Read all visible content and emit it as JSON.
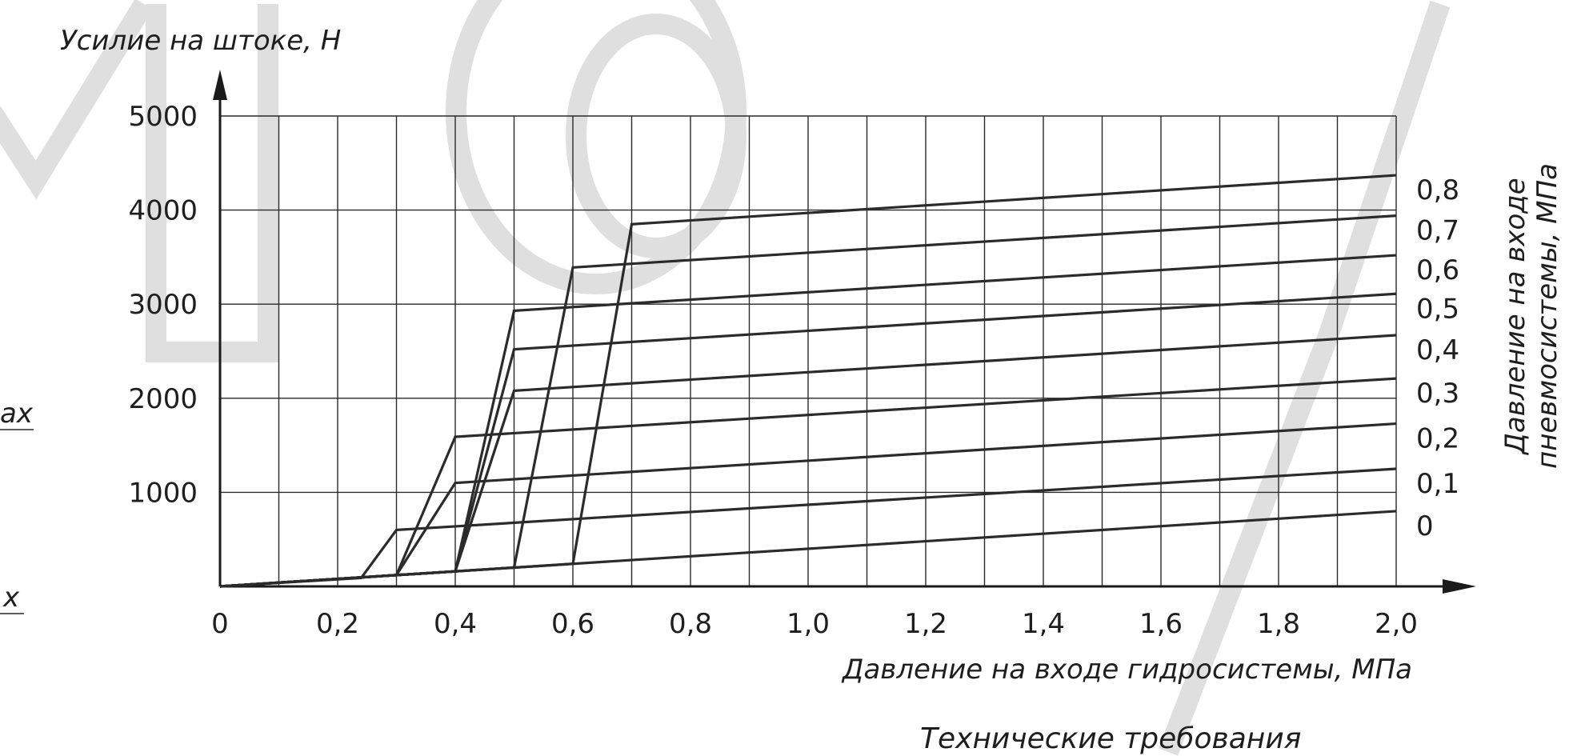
{
  "chart_data": {
    "type": "line",
    "ylabel": "Усилие на штоке, Н",
    "xlabel": "Давление на входе гидросистемы, МПа",
    "right_label_lines": [
      "Давление на входе",
      "пневмосистемы, МПа"
    ],
    "xlim": [
      0,
      2.0
    ],
    "ylim": [
      0,
      5000
    ],
    "x_ticks": [
      {
        "v": 0,
        "label": "0"
      },
      {
        "v": 0.2,
        "label": "0,2"
      },
      {
        "v": 0.4,
        "label": "0,4"
      },
      {
        "v": 0.6,
        "label": "0,6"
      },
      {
        "v": 0.8,
        "label": "0,8"
      },
      {
        "v": 1.0,
        "label": "1,0"
      },
      {
        "v": 1.2,
        "label": "1,2"
      },
      {
        "v": 1.4,
        "label": "1,4"
      },
      {
        "v": 1.6,
        "label": "1,6"
      },
      {
        "v": 1.8,
        "label": "1,8"
      },
      {
        "v": 2.0,
        "label": "2,0"
      }
    ],
    "y_ticks": [
      {
        "v": 1000,
        "label": "1000"
      },
      {
        "v": 2000,
        "label": "2000"
      },
      {
        "v": 3000,
        "label": "3000"
      },
      {
        "v": 4000,
        "label": "4000"
      },
      {
        "v": 5000,
        "label": "5000"
      }
    ],
    "x_grid_step": 0.1,
    "y_grid_step": 1000,
    "grid": true,
    "series": [
      {
        "name": "0",
        "x": [
          0,
          2.0
        ],
        "y": [
          0,
          800
        ]
      },
      {
        "name": "0,1",
        "x": [
          0,
          0.24,
          0.3,
          2.0
        ],
        "y": [
          0,
          90,
          600,
          1250
        ]
      },
      {
        "name": "0,2",
        "x": [
          0,
          0.3,
          0.4,
          2.0
        ],
        "y": [
          0,
          120,
          1100,
          1730
        ]
      },
      {
        "name": "0,3",
        "x": [
          0,
          0.3,
          0.4,
          2.0
        ],
        "y": [
          0,
          120,
          1590,
          2210
        ]
      },
      {
        "name": "0,4",
        "x": [
          0,
          0.4,
          0.5,
          2.0
        ],
        "y": [
          0,
          160,
          2080,
          2670
        ]
      },
      {
        "name": "0,5",
        "x": [
          0,
          0.4,
          0.5,
          2.0
        ],
        "y": [
          0,
          160,
          2520,
          3110
        ]
      },
      {
        "name": "0,6",
        "x": [
          0,
          0.4,
          0.5,
          2.0
        ],
        "y": [
          0,
          160,
          2930,
          3520
        ]
      },
      {
        "name": "0,7",
        "x": [
          0,
          0.5,
          0.6,
          2.0
        ],
        "y": [
          0,
          200,
          3390,
          3940
        ]
      },
      {
        "name": "0,8",
        "x": [
          0,
          0.6,
          0.7,
          2.0
        ],
        "y": [
          0,
          240,
          3850,
          4370
        ]
      }
    ]
  },
  "footer": {
    "caption": "Технические требования",
    "left_fragment_1": "ax",
    "left_fragment_2": "x"
  }
}
